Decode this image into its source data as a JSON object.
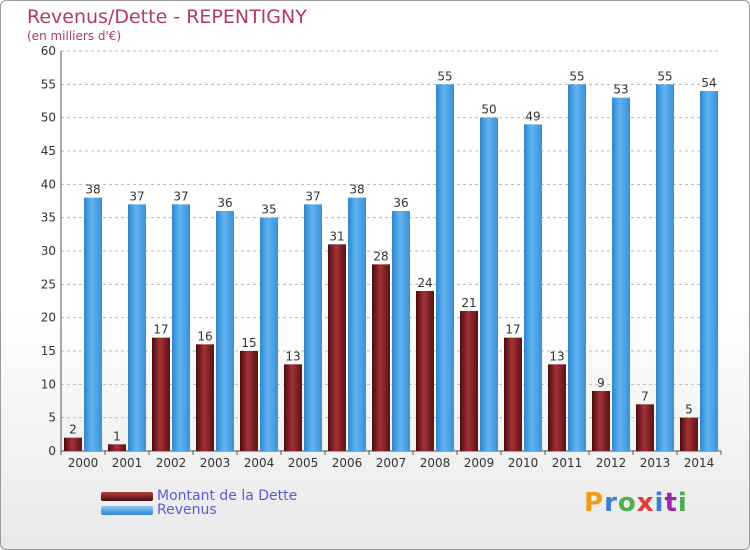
{
  "title": "Revenus/Dette - REPENTIGNY",
  "subtitle": "(en milliers d'€)",
  "chart_data": {
    "type": "bar",
    "categories": [
      "2000",
      "2001",
      "2002",
      "2003",
      "2004",
      "2005",
      "2006",
      "2007",
      "2008",
      "2009",
      "2010",
      "2011",
      "2012",
      "2013",
      "2014"
    ],
    "series": [
      {
        "name": "Montant de la Dette",
        "color": "#7a1f22",
        "values": [
          2,
          1,
          17,
          16,
          15,
          13,
          31,
          28,
          24,
          21,
          17,
          13,
          9,
          7,
          5
        ]
      },
      {
        "name": "Revenus",
        "color": "#4a9fe3",
        "values": [
          38,
          37,
          37,
          36,
          35,
          37,
          38,
          36,
          55,
          50,
          49,
          55,
          53,
          55,
          54
        ]
      }
    ],
    "ylim": [
      0,
      60
    ],
    "yticks": [
      0,
      5,
      10,
      15,
      20,
      25,
      30,
      35,
      40,
      45,
      50,
      55,
      60
    ],
    "grid": "horizontal dashed",
    "legend": "bottom-left"
  },
  "legend": [
    {
      "label": "Montant de la Dette",
      "color": "#7a1f22"
    },
    {
      "label": "Revenus",
      "color": "#4a9fe3"
    }
  ],
  "logo": {
    "letters": [
      "P",
      "r",
      "o",
      "x",
      "i",
      "t",
      "i"
    ],
    "colors": [
      "#f39c12",
      "#3a7fd5",
      "#4caf50",
      "#e53935",
      "#3a7fd5",
      "#9c27b0",
      "#4caf50"
    ]
  }
}
